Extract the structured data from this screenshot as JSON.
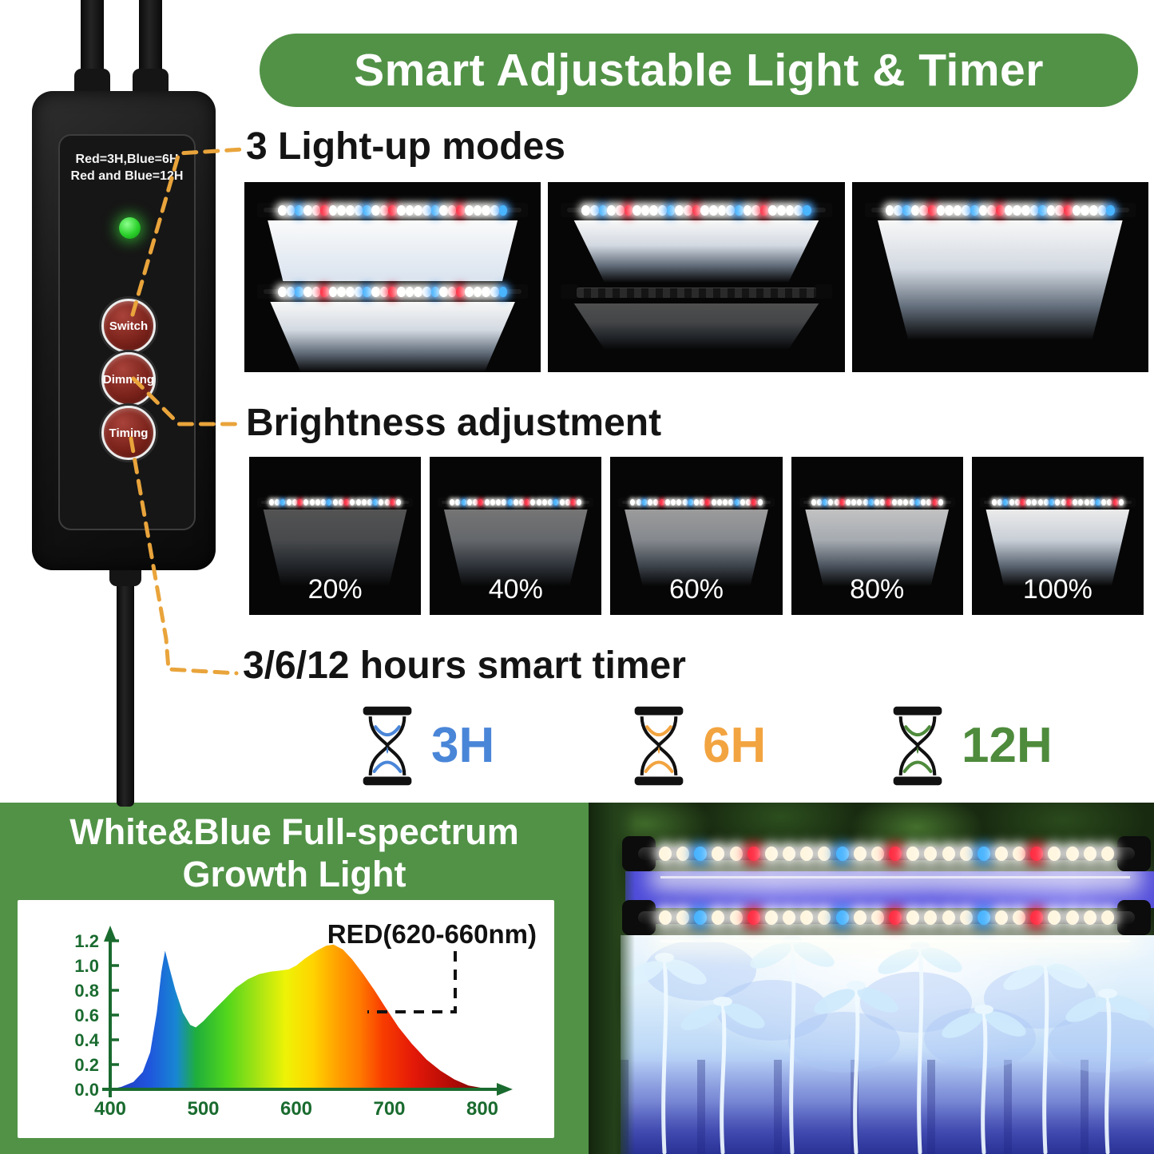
{
  "title": "Smart Adjustable Light & Timer",
  "colors": {
    "brand_green": "#529247",
    "callout_orange": "#e9a43b",
    "heading_text": "#141414",
    "button_red": "#7c241c",
    "led_green": "#2ed32e"
  },
  "controller": {
    "label_line1": "Red=3H,Blue=6H",
    "label_line2": "Red and Blue=12H",
    "buttons": [
      "Switch",
      "Dimming",
      "Timing"
    ],
    "status_led": "green"
  },
  "sections": {
    "modes": {
      "heading": "3 Light-up modes",
      "tiles": [
        "both-bars-on",
        "top-bar-on-bottom-bar-off",
        "single-bar-on"
      ]
    },
    "brightness": {
      "heading": "Brightness adjustment",
      "levels": [
        "20%",
        "40%",
        "60%",
        "80%",
        "100%"
      ]
    },
    "timer": {
      "heading": "3/6/12 hours smart timer",
      "options": [
        {
          "label": "3H",
          "color": "#4a86d8"
        },
        {
          "label": "6H",
          "color": "#f2a440"
        },
        {
          "label": "12H",
          "color": "#4e8b3c"
        }
      ]
    }
  },
  "spectrum_panel": {
    "title_line1": "White&Blue Full-spectrum",
    "title_line2": "Growth Light",
    "chart_data": {
      "type": "area",
      "x": [
        400,
        412,
        425,
        435,
        443,
        450,
        455,
        459,
        464,
        470,
        478,
        486,
        492,
        500,
        510,
        522,
        535,
        548,
        560,
        572,
        583,
        592,
        600,
        610,
        622,
        632,
        640,
        650,
        660,
        672,
        684,
        696,
        710,
        724,
        740,
        755,
        770,
        785,
        800
      ],
      "y": [
        0.0,
        0.02,
        0.06,
        0.14,
        0.3,
        0.62,
        0.95,
        1.12,
        0.97,
        0.8,
        0.62,
        0.52,
        0.5,
        0.55,
        0.63,
        0.72,
        0.82,
        0.89,
        0.93,
        0.95,
        0.96,
        0.97,
        1.0,
        1.06,
        1.12,
        1.16,
        1.17,
        1.13,
        1.05,
        0.93,
        0.8,
        0.66,
        0.5,
        0.37,
        0.24,
        0.15,
        0.08,
        0.03,
        0.01
      ],
      "xticks": [
        400,
        500,
        600,
        700,
        800
      ],
      "yticks": [
        0.0,
        0.2,
        0.4,
        0.6,
        0.8,
        1.0,
        1.2
      ],
      "xlim": [
        400,
        820
      ],
      "ylim": [
        0,
        1.3
      ],
      "annotation": "RED(620-660nm)",
      "fill": "spectral-rainbow-gradient",
      "axis_color": "#1a6b2f",
      "grid": false,
      "legend": "none",
      "title": "",
      "xlabel": "",
      "ylabel": ""
    }
  }
}
